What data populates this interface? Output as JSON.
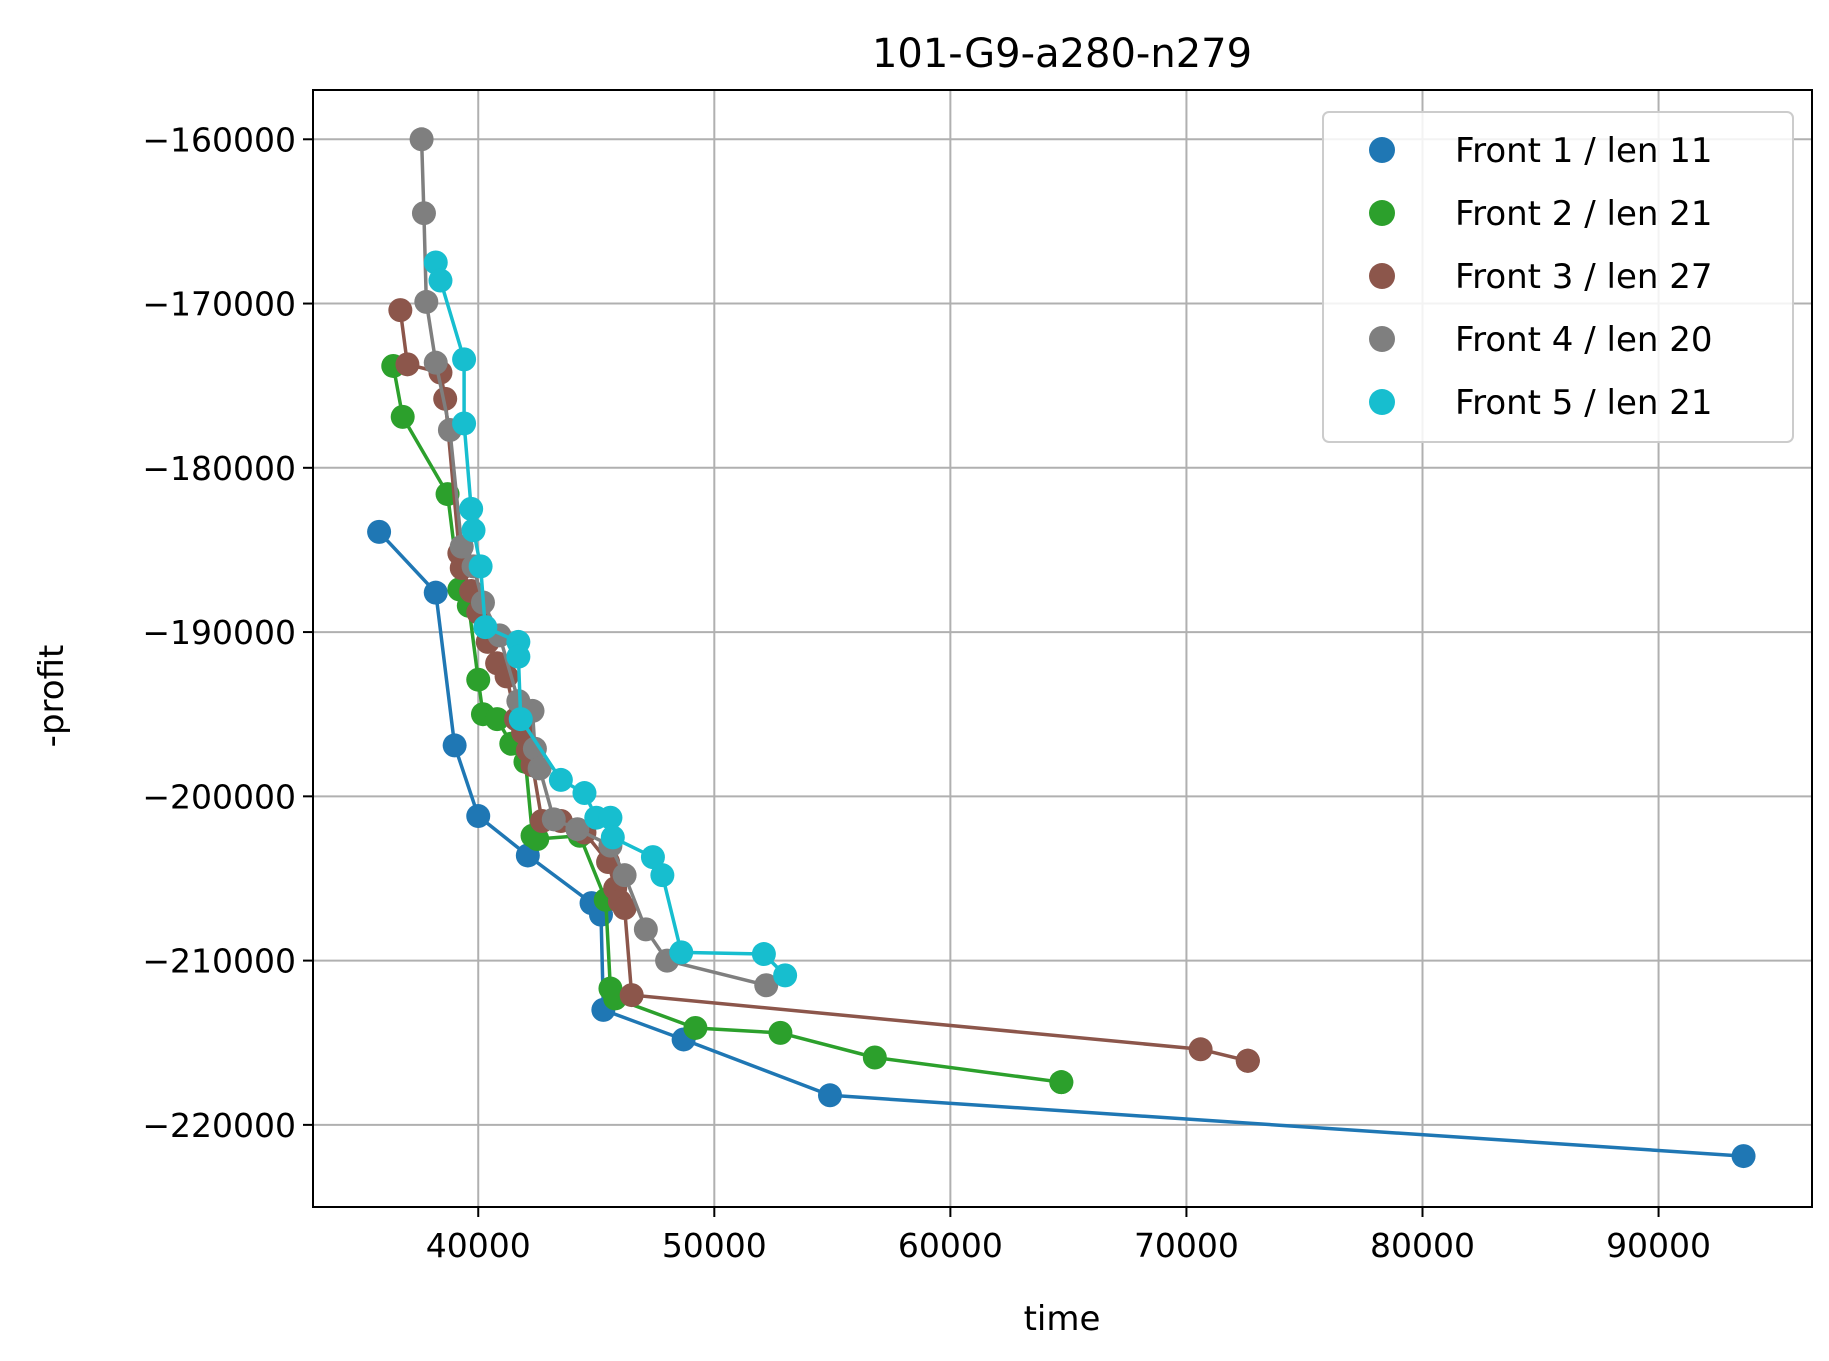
{
  "chart_data": {
    "type": "line",
    "title": "101-G9-a280-n279",
    "xlabel": "time",
    "ylabel": "-profit",
    "xlim": [
      33000,
      96500
    ],
    "ylim": [
      -225000,
      -157000
    ],
    "xticks": [
      40000,
      50000,
      60000,
      70000,
      80000,
      90000
    ],
    "xtick_labels": [
      "40000",
      "50000",
      "60000",
      "70000",
      "80000",
      "90000"
    ],
    "yticks": [
      -160000,
      -170000,
      -180000,
      -190000,
      -200000,
      -210000,
      -220000
    ],
    "ytick_labels": [
      "−160000",
      "−170000",
      "−180000",
      "−190000",
      "−200000",
      "−210000",
      "−220000"
    ],
    "grid": true,
    "legend_position": "top-right",
    "series": [
      {
        "name": "Front 1 / len 11",
        "color": "#1f77b4",
        "x": [
          35800,
          38200,
          39000,
          40000,
          42100,
          44800,
          45200,
          45300,
          48700,
          54900,
          93600
        ],
        "y": [
          -183900,
          -187600,
          -196900,
          -201200,
          -203600,
          -206500,
          -207200,
          -213000,
          -214800,
          -218200,
          -221900
        ]
      },
      {
        "name": "Front 2 / len 21",
        "color": "#2ca02c",
        "x": [
          36400,
          36800,
          38700,
          39200,
          39600,
          40000,
          40200,
          40800,
          41400,
          42000,
          42300,
          42500,
          44300,
          45400,
          45600,
          45800,
          49200,
          52800,
          56800,
          64700,
          64700
        ],
        "y": [
          -173800,
          -176900,
          -181600,
          -187400,
          -188400,
          -192900,
          -195000,
          -195300,
          -196800,
          -197900,
          -202400,
          -202600,
          -202400,
          -206300,
          -211700,
          -212300,
          -214100,
          -214400,
          -215900,
          -217400,
          -217400
        ]
      },
      {
        "name": "Front 3 / len 27",
        "color": "#8c564b",
        "x": [
          36700,
          37000,
          38400,
          38600,
          39200,
          39300,
          39700,
          40000,
          40400,
          40800,
          41200,
          41600,
          41900,
          42100,
          42300,
          42700,
          43500,
          44500,
          45500,
          45800,
          46000,
          46200,
          46500,
          70600,
          72600,
          72600,
          72600
        ],
        "y": [
          -170400,
          -173700,
          -174200,
          -175800,
          -185200,
          -186100,
          -187500,
          -188800,
          -190600,
          -191900,
          -192700,
          -195300,
          -196100,
          -197200,
          -198100,
          -201500,
          -201500,
          -202200,
          -204000,
          -205600,
          -206400,
          -206800,
          -212100,
          -215400,
          -216100,
          -216100,
          -216100
        ]
      },
      {
        "name": "Front 4 / len 20",
        "color": "#7f7f7f",
        "x": [
          37600,
          37700,
          37800,
          38200,
          38800,
          39300,
          39800,
          40200,
          40900,
          41700,
          42300,
          42400,
          42600,
          43200,
          44200,
          45600,
          46200,
          47100,
          48000,
          52200
        ],
        "y": [
          -160000,
          -164500,
          -169900,
          -173600,
          -177700,
          -184800,
          -186000,
          -188200,
          -190200,
          -194200,
          -194800,
          -197100,
          -198300,
          -201400,
          -202000,
          -203000,
          -204800,
          -208100,
          -210000,
          -211500
        ]
      },
      {
        "name": "Front 5 / len 21",
        "color": "#17becf",
        "x": [
          38200,
          38400,
          39400,
          39400,
          39700,
          39800,
          40100,
          40300,
          41700,
          41700,
          41800,
          43500,
          44500,
          45000,
          45600,
          45700,
          47400,
          47800,
          48600,
          52100,
          53000
        ],
        "y": [
          -167500,
          -168600,
          -173400,
          -177300,
          -182500,
          -183800,
          -186000,
          -189700,
          -190600,
          -191500,
          -195300,
          -199000,
          -199800,
          -201300,
          -201300,
          -202500,
          -203700,
          -204800,
          -209500,
          -209600,
          -210900
        ]
      }
    ]
  }
}
